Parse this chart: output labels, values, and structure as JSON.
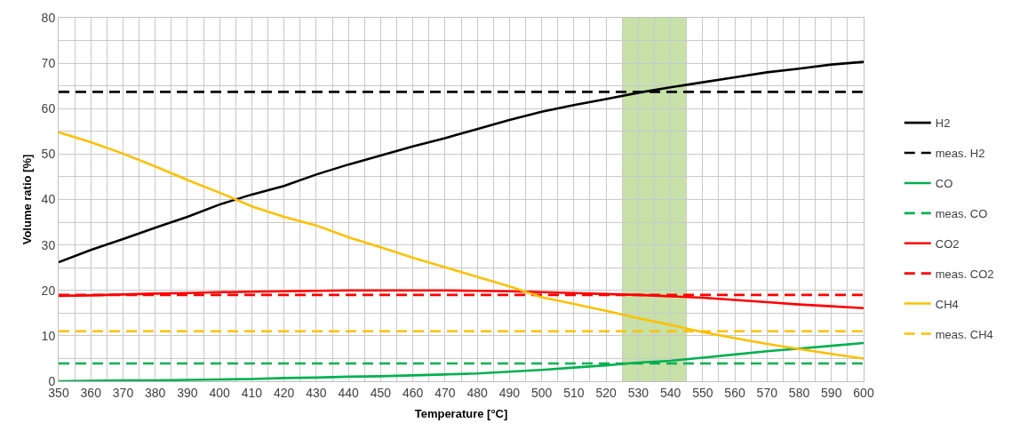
{
  "chart_data": {
    "type": "line",
    "xlabel": "Temperature [°C]",
    "ylabel": "Volume ratio [%]",
    "x": [
      350,
      360,
      370,
      380,
      390,
      400,
      410,
      420,
      430,
      440,
      450,
      460,
      470,
      480,
      490,
      500,
      510,
      520,
      530,
      540,
      550,
      560,
      570,
      580,
      590,
      600
    ],
    "xlim": [
      350,
      600
    ],
    "ylim": [
      0,
      80
    ],
    "xticks": [
      350,
      {
        "value": 355,
        "label": null
      },
      360,
      {
        "value": 365,
        "label": null
      },
      370,
      {
        "value": 375,
        "label": null
      },
      380,
      {
        "value": 385,
        "label": null
      },
      390,
      {
        "value": 395,
        "label": null
      },
      400,
      {
        "value": 405,
        "label": null
      },
      410,
      {
        "value": 415,
        "label": null
      },
      420,
      {
        "value": 425,
        "label": null
      },
      430,
      {
        "value": 435,
        "label": null
      },
      440,
      {
        "value": 445,
        "label": null
      },
      450,
      {
        "value": 455,
        "label": null
      },
      460,
      {
        "value": 465,
        "label": null
      },
      470,
      {
        "value": 475,
        "label": null
      },
      480,
      {
        "value": 485,
        "label": null
      },
      490,
      {
        "value": 495,
        "label": null
      },
      500,
      {
        "value": 505,
        "label": null
      },
      510,
      {
        "value": 515,
        "label": null
      },
      520,
      {
        "value": 525,
        "label": null
      },
      530,
      {
        "value": 535,
        "label": null
      },
      540,
      {
        "value": 545,
        "label": null
      },
      550,
      {
        "value": 555,
        "label": null
      },
      560,
      {
        "value": 565,
        "label": null
      },
      570,
      {
        "value": 575,
        "label": null
      },
      580,
      {
        "value": 585,
        "label": null
      },
      590,
      {
        "value": 595,
        "label": null
      },
      600
    ],
    "yticks": [
      0,
      {
        "value": 5,
        "label": null
      },
      10,
      {
        "value": 15,
        "label": null
      },
      20,
      {
        "value": 25,
        "label": null
      },
      30,
      {
        "value": 35,
        "label": null
      },
      40,
      {
        "value": 45,
        "label": null
      },
      50,
      {
        "value": 55,
        "label": null
      },
      60,
      {
        "value": 65,
        "label": null
      },
      70,
      {
        "value": 75,
        "label": null
      },
      80
    ],
    "grid": true,
    "legend": "right",
    "marker": "none",
    "bands": [
      {
        "axis": "x",
        "from": 525,
        "to": 545,
        "color": "#bddc9a"
      }
    ],
    "series": [
      {
        "name": "H2",
        "color": "#000000",
        "line_style": "solid",
        "values": [
          26.2,
          28.9,
          31.3,
          33.8,
          36.2,
          38.9,
          41.1,
          43.0,
          45.5,
          47.7,
          49.7,
          51.7,
          53.5,
          55.5,
          57.5,
          59.3,
          60.8,
          62.1,
          63.5,
          64.7,
          65.8,
          66.9,
          68.0,
          68.8,
          69.7,
          70.3
        ]
      },
      {
        "name": "meas. H2",
        "color": "#000000",
        "line_style": "dashed",
        "values": [
          63.7,
          63.7,
          63.7,
          63.7,
          63.7,
          63.7,
          63.7,
          63.7,
          63.7,
          63.7,
          63.7,
          63.7,
          63.7,
          63.7,
          63.7,
          63.7,
          63.7,
          63.7,
          63.7,
          63.7,
          63.7,
          63.7,
          63.7,
          63.7,
          63.7,
          63.7
        ]
      },
      {
        "name": "CO",
        "color": "#00b050",
        "line_style": "solid",
        "values": [
          0.0,
          0.1,
          0.2,
          0.2,
          0.3,
          0.4,
          0.5,
          0.7,
          0.8,
          1.0,
          1.1,
          1.3,
          1.5,
          1.7,
          2.1,
          2.5,
          3.0,
          3.5,
          4.1,
          4.5,
          5.2,
          5.9,
          6.6,
          7.2,
          7.8,
          8.4
        ]
      },
      {
        "name": "meas. CO",
        "color": "#00b050",
        "line_style": "dashed",
        "values": [
          3.9,
          3.9,
          3.9,
          3.9,
          3.9,
          3.9,
          3.9,
          3.9,
          3.9,
          3.9,
          3.9,
          3.9,
          3.9,
          3.9,
          3.9,
          3.9,
          3.9,
          3.9,
          3.9,
          3.9,
          3.9,
          3.9,
          3.9,
          3.9,
          3.9,
          3.9
        ]
      },
      {
        "name": "CO2",
        "color": "#ff0000",
        "line_style": "solid",
        "values": [
          18.8,
          18.9,
          19.1,
          19.3,
          19.4,
          19.6,
          19.7,
          19.8,
          19.9,
          20.0,
          20.0,
          20.0,
          20.0,
          19.9,
          19.8,
          19.6,
          19.4,
          19.2,
          19.0,
          18.7,
          18.4,
          17.9,
          17.4,
          16.9,
          16.5,
          16.1
        ]
      },
      {
        "name": "meas. CO2",
        "color": "#ff0000",
        "line_style": "dashed",
        "values": [
          19.0,
          19.0,
          19.0,
          19.0,
          19.0,
          19.0,
          19.0,
          19.0,
          19.0,
          19.0,
          19.0,
          19.0,
          19.0,
          19.0,
          19.0,
          19.0,
          19.0,
          19.0,
          19.0,
          19.0,
          19.0,
          19.0,
          19.0,
          19.0,
          19.0,
          19.0
        ]
      },
      {
        "name": "CH4",
        "color": "#ffc000",
        "line_style": "solid",
        "values": [
          54.8,
          52.6,
          50.1,
          47.3,
          44.3,
          41.5,
          38.5,
          36.2,
          34.3,
          31.7,
          29.5,
          27.2,
          25.1,
          23.0,
          20.9,
          18.5,
          17.0,
          15.5,
          13.9,
          12.4,
          10.8,
          9.5,
          8.2,
          7.1,
          6.0,
          5.0
        ]
      },
      {
        "name": "meas. CH4",
        "color": "#ffc000",
        "line_style": "dashed",
        "values": [
          11.0,
          11.0,
          11.0,
          11.0,
          11.0,
          11.0,
          11.0,
          11.0,
          11.0,
          11.0,
          11.0,
          11.0,
          11.0,
          11.0,
          11.0,
          11.0,
          11.0,
          11.0,
          11.0,
          11.0,
          11.0,
          11.0,
          11.0,
          11.0,
          11.0,
          11.0
        ]
      }
    ]
  }
}
